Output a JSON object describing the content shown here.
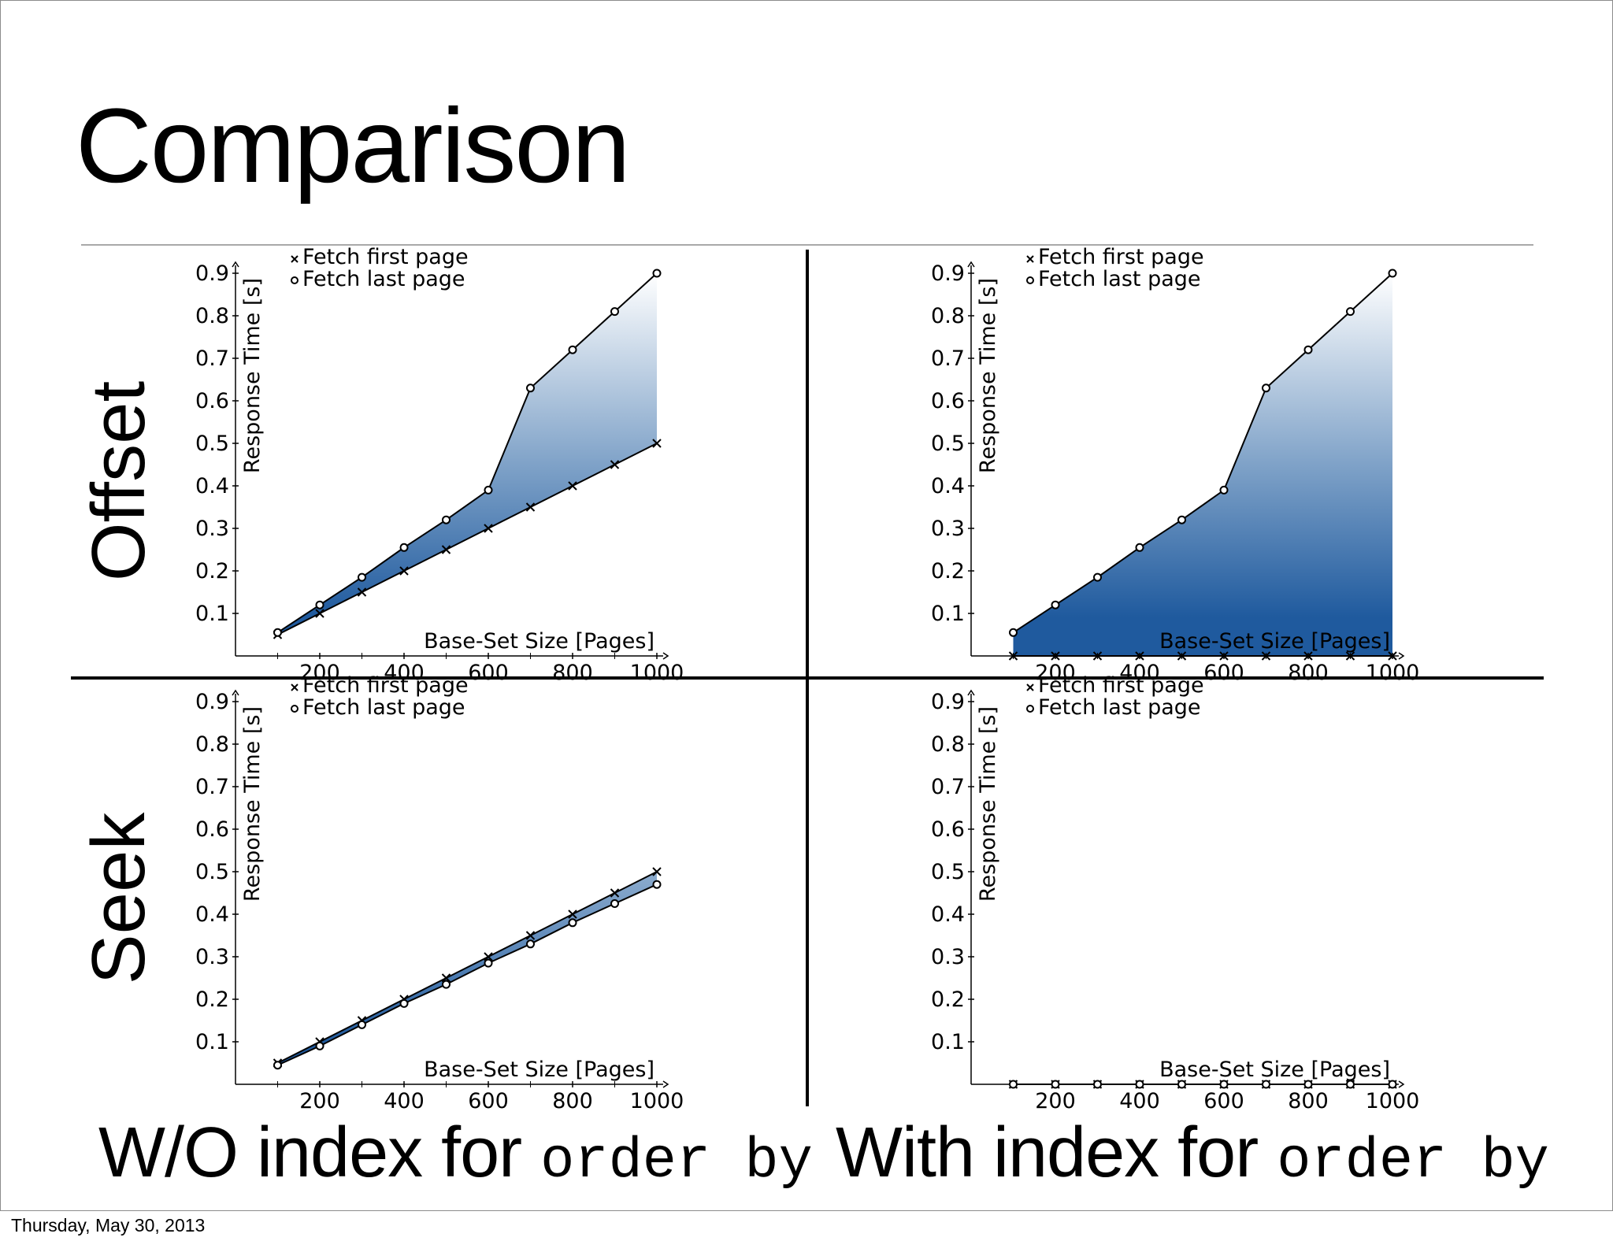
{
  "title": "Comparison",
  "row_labels": [
    "Offset",
    "Seek"
  ],
  "column_labels": [
    {
      "text": "W/O index for ",
      "code": "order by"
    },
    {
      "text": "With index for ",
      "code": "order by"
    }
  ],
  "footer": "Thursday, May 30, 2013",
  "colors": {
    "fill_dark": "#1f5a9e",
    "fill_light": "#ffffff",
    "line": "#000000"
  },
  "chart_data": [
    {
      "type": "area",
      "position": "top-left",
      "xlabel": "Base-Set Size [Pages]",
      "ylabel": "Response Time [s]",
      "xlim": [
        0,
        1000
      ],
      "ylim": [
        0,
        0.9
      ],
      "xticks": [
        200,
        400,
        600,
        800,
        1000
      ],
      "yticks": [
        0.1,
        0.2,
        0.3,
        0.4,
        0.5,
        0.6,
        0.7,
        0.8,
        0.9
      ],
      "legend_position": "top-left",
      "x": [
        100,
        200,
        300,
        400,
        500,
        600,
        700,
        800,
        900,
        1000
      ],
      "series": [
        {
          "name": "Fetch first page",
          "marker": "x",
          "values": [
            0.05,
            0.1,
            0.15,
            0.2,
            0.25,
            0.3,
            0.35,
            0.4,
            0.45,
            0.5
          ]
        },
        {
          "name": "Fetch last page",
          "marker": "o",
          "values": [
            0.055,
            0.12,
            0.185,
            0.255,
            0.32,
            0.39,
            0.63,
            0.72,
            0.81,
            0.9
          ]
        }
      ]
    },
    {
      "type": "area",
      "position": "top-right",
      "xlabel": "Base-Set Size [Pages]",
      "ylabel": "Response Time [s]",
      "xlim": [
        0,
        1000
      ],
      "ylim": [
        0,
        0.9
      ],
      "xticks": [
        200,
        400,
        600,
        800,
        1000
      ],
      "yticks": [
        0.1,
        0.2,
        0.3,
        0.4,
        0.5,
        0.6,
        0.7,
        0.8,
        0.9
      ],
      "legend_position": "top-left",
      "x": [
        100,
        200,
        300,
        400,
        500,
        600,
        700,
        800,
        900,
        1000
      ],
      "series": [
        {
          "name": "Fetch first page",
          "marker": "x",
          "values": [
            0,
            0,
            0,
            0,
            0,
            0,
            0,
            0,
            0,
            0
          ]
        },
        {
          "name": "Fetch last page",
          "marker": "o",
          "values": [
            0.055,
            0.12,
            0.185,
            0.255,
            0.32,
            0.39,
            0.63,
            0.72,
            0.81,
            0.9
          ]
        }
      ]
    },
    {
      "type": "area",
      "position": "bottom-left",
      "xlabel": "Base-Set Size [Pages]",
      "ylabel": "Response Time [s]",
      "xlim": [
        0,
        1000
      ],
      "ylim": [
        0,
        0.9
      ],
      "xticks": [
        200,
        400,
        600,
        800,
        1000
      ],
      "yticks": [
        0.1,
        0.2,
        0.3,
        0.4,
        0.5,
        0.6,
        0.7,
        0.8,
        0.9
      ],
      "legend_position": "top-left",
      "x": [
        100,
        200,
        300,
        400,
        500,
        600,
        700,
        800,
        900,
        1000
      ],
      "series": [
        {
          "name": "Fetch first page",
          "marker": "x",
          "values": [
            0.05,
            0.1,
            0.15,
            0.2,
            0.25,
            0.3,
            0.35,
            0.4,
            0.45,
            0.5
          ]
        },
        {
          "name": "Fetch last page",
          "marker": "o",
          "values": [
            0.045,
            0.09,
            0.14,
            0.19,
            0.235,
            0.285,
            0.33,
            0.38,
            0.425,
            0.47
          ]
        }
      ]
    },
    {
      "type": "area",
      "position": "bottom-right",
      "xlabel": "Base-Set Size [Pages]",
      "ylabel": "Response Time [s]",
      "xlim": [
        0,
        1000
      ],
      "ylim": [
        0,
        0.9
      ],
      "xticks": [
        200,
        400,
        600,
        800,
        1000
      ],
      "yticks": [
        0.1,
        0.2,
        0.3,
        0.4,
        0.5,
        0.6,
        0.7,
        0.8,
        0.9
      ],
      "legend_position": "top-left",
      "x": [
        100,
        200,
        300,
        400,
        500,
        600,
        700,
        800,
        900,
        1000
      ],
      "series": [
        {
          "name": "Fetch first page",
          "marker": "x",
          "values": [
            0,
            0,
            0,
            0,
            0,
            0,
            0,
            0,
            0,
            0
          ]
        },
        {
          "name": "Fetch last page",
          "marker": "o",
          "values": [
            0,
            0,
            0,
            0,
            0,
            0,
            0,
            0,
            0,
            0
          ]
        }
      ]
    }
  ]
}
